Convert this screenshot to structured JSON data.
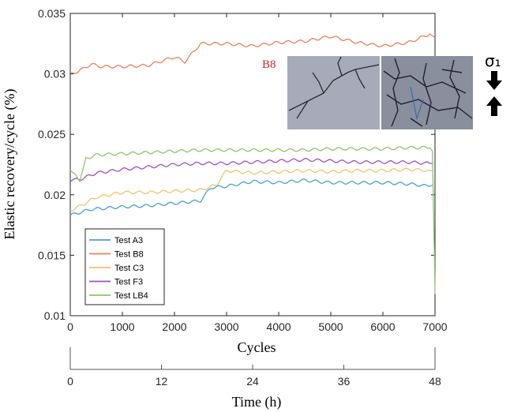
{
  "chart_data": {
    "type": "line",
    "xlabel": "Cycles",
    "ylabel": "Elastic recovery/cycle (%)",
    "xlim": [
      0,
      7000
    ],
    "ylim": [
      0.01,
      0.035
    ],
    "x_ticks": [
      "0",
      "1000",
      "2000",
      "3000",
      "4000",
      "5000",
      "6000",
      "7000"
    ],
    "y_ticks": [
      "0.01",
      "0.015",
      "0.02",
      "0.025",
      "0.03",
      "0.035"
    ],
    "x2label": "Time (h)",
    "x2_ticks": [
      "0",
      "12",
      "24",
      "36",
      "48"
    ],
    "legend_position": "bottom-left",
    "series": [
      {
        "name": "Test A3",
        "color": "#4a9fd5",
        "x": [
          0,
          150,
          400,
          1000,
          1500,
          2000,
          2500,
          2700,
          3000,
          3500,
          4000,
          4500,
          5000,
          5500,
          6000,
          6500,
          6900,
          6950
        ],
        "values": [
          0.0183,
          0.0185,
          0.0188,
          0.019,
          0.0191,
          0.0193,
          0.0195,
          0.0206,
          0.0207,
          0.0211,
          0.021,
          0.0212,
          0.021,
          0.021,
          0.021,
          0.0209,
          0.0207,
          0.0208
        ]
      },
      {
        "name": "Test B8",
        "color": "#e8825a",
        "x": [
          0,
          150,
          400,
          600,
          1000,
          1500,
          2000,
          2200,
          2500,
          3000,
          3500,
          4000,
          4500,
          5000,
          5500,
          6000,
          6500,
          6900,
          7000
        ],
        "values": [
          0.03,
          0.0302,
          0.0308,
          0.0306,
          0.0306,
          0.0307,
          0.0314,
          0.031,
          0.0325,
          0.0325,
          0.0323,
          0.0326,
          0.0327,
          0.0331,
          0.0326,
          0.0323,
          0.0326,
          0.0333,
          0.033
        ]
      },
      {
        "name": "Test C3",
        "color": "#f2c470",
        "x": [
          0,
          200,
          500,
          1000,
          1500,
          2000,
          2500,
          2800,
          3000,
          3500,
          4000,
          4500,
          5000,
          5500,
          6000,
          6500,
          6900,
          6950
        ],
        "values": [
          0.0187,
          0.0191,
          0.0198,
          0.0202,
          0.0202,
          0.0203,
          0.0204,
          0.0208,
          0.022,
          0.0218,
          0.0219,
          0.022,
          0.0219,
          0.022,
          0.022,
          0.0221,
          0.022,
          0.022
        ]
      },
      {
        "name": "Test F3",
        "color": "#a050c0",
        "x": [
          0,
          200,
          500,
          1000,
          1500,
          2000,
          2500,
          3000,
          3500,
          4000,
          4500,
          5000,
          5500,
          6000,
          6500,
          6900,
          6950
        ],
        "values": [
          0.0212,
          0.0213,
          0.0218,
          0.0221,
          0.0223,
          0.0225,
          0.0226,
          0.0226,
          0.0227,
          0.0228,
          0.0229,
          0.0228,
          0.0227,
          0.0227,
          0.0227,
          0.0226,
          0.0226
        ]
      },
      {
        "name": "Test LB4",
        "color": "#8ec56a",
        "x": [
          0,
          100,
          180,
          300,
          500,
          1000,
          1500,
          2000,
          2500,
          3000,
          3500,
          4000,
          4500,
          5000,
          5500,
          6000,
          6500,
          6900,
          6950,
          6970,
          6990,
          7000
        ],
        "values": [
          0.022,
          0.0217,
          0.0211,
          0.023,
          0.0233,
          0.0234,
          0.0235,
          0.0236,
          0.0237,
          0.0237,
          0.0237,
          0.0237,
          0.0237,
          0.0238,
          0.0238,
          0.0238,
          0.0239,
          0.0239,
          0.0236,
          0.019,
          0.015,
          0.0118
        ]
      }
    ]
  },
  "inset": {
    "label": "B8",
    "stress_symbol": "σ₁"
  }
}
